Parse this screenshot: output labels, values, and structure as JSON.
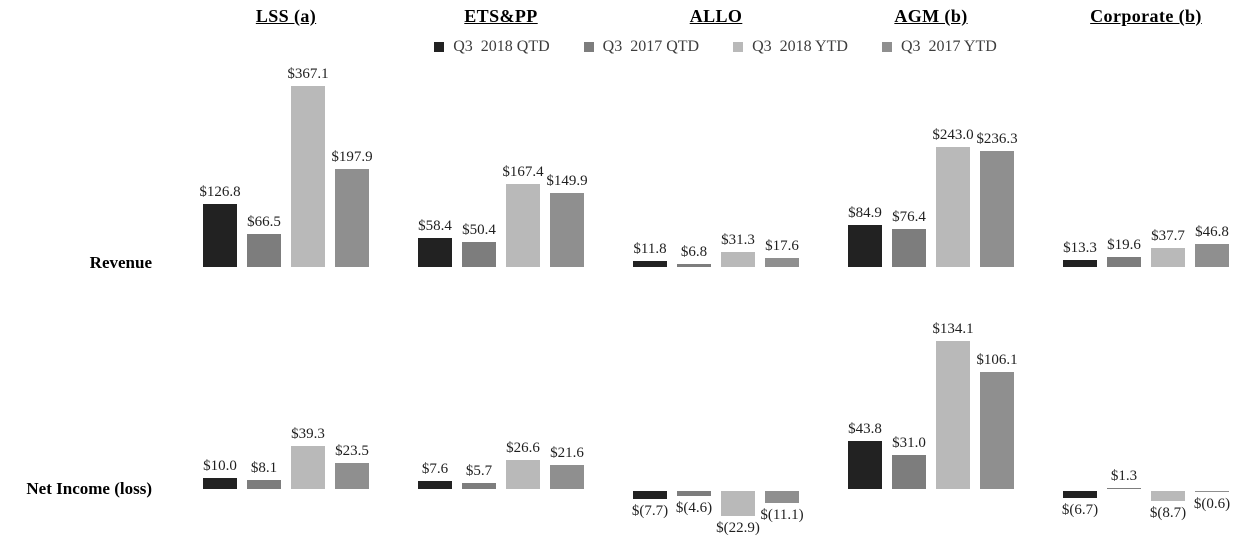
{
  "chart_data": {
    "type": "bar",
    "title": "",
    "layout": {
      "legend_position": "top-center",
      "grid": false,
      "background": "#ffffff",
      "value_labels": "outside-end, negatives below bars in parentheses"
    },
    "series": [
      {
        "name": "Q3  2018 QTD",
        "color": "#222222"
      },
      {
        "name": "Q3  2017 QTD",
        "color": "#7d7d7d"
      },
      {
        "name": "Q3  2018 YTD",
        "color": "#b9b9b9"
      },
      {
        "name": "Q3  2017 YTD",
        "color": "#8f8f8f"
      }
    ],
    "segments": [
      "LSS (a)",
      "ETS&PP",
      "ALLO",
      "AGM (b)",
      "Corporate (b)"
    ],
    "rows": [
      {
        "label": "Revenue",
        "values_by_segment": [
          [
            126.8,
            66.5,
            367.1,
            197.9
          ],
          [
            58.4,
            50.4,
            167.4,
            149.9
          ],
          [
            11.8,
            6.8,
            31.3,
            17.6
          ],
          [
            84.9,
            76.4,
            243.0,
            236.3
          ],
          [
            13.3,
            19.6,
            37.7,
            46.8
          ]
        ],
        "labels_by_segment": [
          [
            "$126.8",
            "$66.5",
            "$367.1",
            "$197.9"
          ],
          [
            "$58.4",
            "$50.4",
            "$167.4",
            "$149.9"
          ],
          [
            "$11.8",
            "$6.8",
            "$31.3",
            "$17.6"
          ],
          [
            "$84.9",
            "$76.4",
            "$243.0",
            "$236.3"
          ],
          [
            "$13.3",
            "$19.6",
            "$37.7",
            "$46.8"
          ]
        ]
      },
      {
        "label": "Net Income (loss)",
        "values_by_segment": [
          [
            10.0,
            8.1,
            39.3,
            23.5
          ],
          [
            7.6,
            5.7,
            26.6,
            21.6
          ],
          [
            -7.7,
            -4.6,
            -22.9,
            -11.1
          ],
          [
            43.8,
            31.0,
            134.1,
            106.1
          ],
          [
            -6.7,
            1.3,
            -8.7,
            -0.6
          ]
        ],
        "labels_by_segment": [
          [
            "$10.0",
            "$8.1",
            "$39.3",
            "$23.5"
          ],
          [
            "$7.6",
            "$5.7",
            "$26.6",
            "$21.6"
          ],
          [
            "$(7.7)",
            "$(4.6)",
            "$(22.9)",
            "$(11.1)"
          ],
          [
            "$43.8",
            "$31.0",
            "$134.1",
            "$106.1"
          ],
          [
            "$(6.7)",
            "$1.3",
            "$(8.7)",
            "$(0.6)"
          ]
        ]
      }
    ]
  }
}
